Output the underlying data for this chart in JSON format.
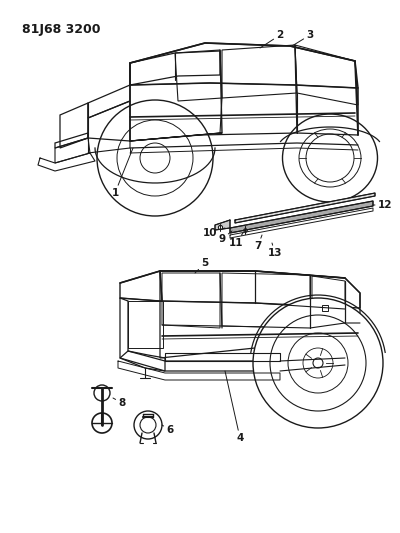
{
  "title": "81J68 3200",
  "background_color": "#ffffff",
  "line_color": "#1a1a1a",
  "fig_width": 4.0,
  "fig_height": 5.33,
  "dpi": 100
}
